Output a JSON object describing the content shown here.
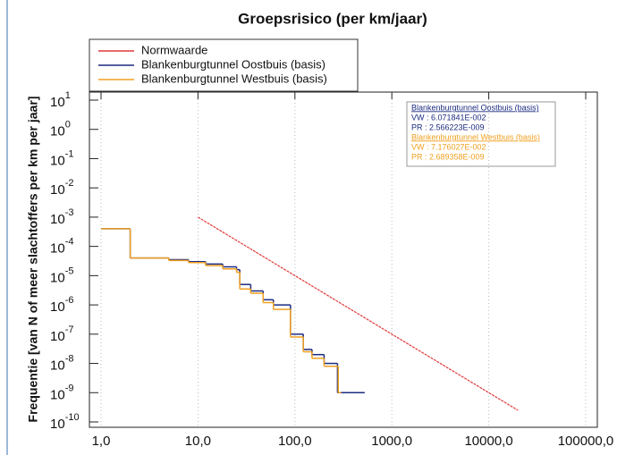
{
  "chart_data": {
    "type": "line",
    "title": "Groepsrisico (per km/jaar)",
    "y_label": "Frequentie [van N of meer slachtoffers per km per jaar]",
    "xscale": "log",
    "yscale": "log",
    "grid": true,
    "xlim": [
      1,
      100000
    ],
    "ylim": [
      1e-10,
      10
    ],
    "xticks": [
      {
        "value": 1,
        "label": "1,0"
      },
      {
        "value": 10,
        "label": "10,0"
      },
      {
        "value": 100,
        "label": "100,0"
      },
      {
        "value": 1000,
        "label": "1000,0"
      },
      {
        "value": 10000,
        "label": "10000,0"
      },
      {
        "value": 100000,
        "label": "100000,0"
      }
    ],
    "yticks": [
      {
        "value": 10,
        "label": "10",
        "exponent": "1"
      },
      {
        "value": 1,
        "label": "10",
        "exponent": "0"
      },
      {
        "value": 0.1,
        "label": "10",
        "exponent": "-1"
      },
      {
        "value": 0.01,
        "label": "10",
        "exponent": "-2"
      },
      {
        "value": 0.001,
        "label": "10",
        "exponent": "-3"
      },
      {
        "value": 0.0001,
        "label": "10",
        "exponent": "-4"
      },
      {
        "value": 1e-05,
        "label": "10",
        "exponent": "-5"
      },
      {
        "value": 1e-06,
        "label": "10",
        "exponent": "-6"
      },
      {
        "value": 1e-07,
        "label": "10",
        "exponent": "-7"
      },
      {
        "value": 1e-08,
        "label": "10",
        "exponent": "-8"
      },
      {
        "value": 1e-09,
        "label": "10",
        "exponent": "-9"
      },
      {
        "value": 1e-10,
        "label": "10",
        "exponent": "-10"
      }
    ],
    "series": [
      {
        "name": "Normwaarde",
        "color": "#e03a3a",
        "drawstyle": "default",
        "x": [
          10,
          100,
          1000,
          10000,
          20000
        ],
        "values": [
          0.001,
          1e-05,
          1e-07,
          1e-09,
          2.5e-10
        ]
      },
      {
        "name": "Blankenburgtunnel Oostbuis (basis)",
        "color": "#1c2c80",
        "drawstyle": "steps-post",
        "x": [
          1,
          2,
          5,
          8,
          12,
          18,
          25,
          27,
          35,
          47,
          60,
          90,
          122,
          150,
          200,
          275,
          525
        ],
        "values": [
          0.0004,
          4e-05,
          3.5e-05,
          3e-05,
          2.5e-05,
          2e-05,
          1.6e-05,
          5e-06,
          3e-06,
          1.5e-06,
          1e-06,
          1e-07,
          3e-08,
          2e-08,
          1e-08,
          1e-09,
          1e-09
        ]
      },
      {
        "name": "Blankenburgtunnel Westbuis (basis)",
        "color": "#f0a020",
        "drawstyle": "steps-post",
        "x": [
          1,
          2,
          5,
          8,
          12,
          18,
          25,
          27,
          35,
          47,
          60,
          90,
          122,
          150,
          200,
          280,
          300
        ],
        "values": [
          0.0004,
          4e-05,
          3.3e-05,
          2.8e-05,
          2.2e-05,
          1.7e-05,
          1.3e-05,
          3.5e-06,
          2.5e-06,
          1.2e-06,
          7e-07,
          8e-08,
          2.5e-08,
          1.5e-08,
          8e-09,
          1e-09,
          1e-09
        ]
      }
    ],
    "info_box": [
      {
        "text": "Blankenburgtunnel Oostbuis (basis)",
        "color": "#1c2c80"
      },
      {
        "text": "VW : 6.071841E-002",
        "color": "#1c2c80"
      },
      {
        "text": "PR : 2.566223E-009",
        "color": "#1c2c80"
      },
      {
        "text": "Blankenburgtunnel Westbuis (basis)",
        "color": "#f0a020"
      },
      {
        "text": "VW : 7.176027E-002",
        "color": "#f0a020"
      },
      {
        "text": "PR : 2.689358E-009",
        "color": "#f0a020"
      }
    ]
  }
}
